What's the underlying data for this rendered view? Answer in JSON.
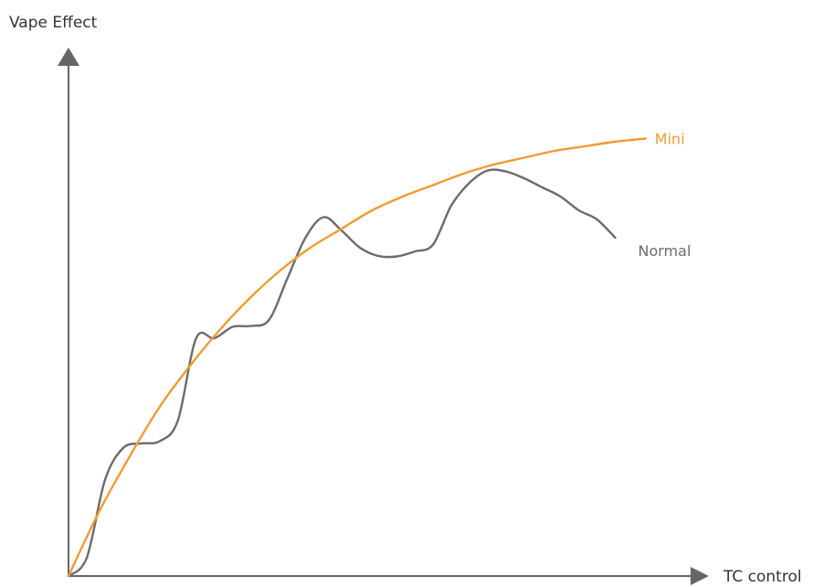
{
  "chart_data": {
    "type": "line",
    "title": "",
    "xlabel": "TC control",
    "ylabel": "Vape Effect",
    "xlim": [
      0,
      10
    ],
    "ylim": [
      0,
      10
    ],
    "grid": false,
    "series": [
      {
        "name": "Mini",
        "color": "#f39a32",
        "label_position": "end",
        "x": [
          0,
          0.5,
          1,
          1.5,
          2,
          2.5,
          3,
          3.5,
          4,
          4.5,
          5,
          5.5,
          6,
          6.5,
          7,
          7.5,
          8,
          8.5,
          9,
          9.5
        ],
        "y": [
          0,
          1.4,
          2.6,
          3.7,
          4.6,
          5.4,
          6.1,
          6.7,
          7.2,
          7.6,
          8.0,
          8.3,
          8.55,
          8.8,
          9.0,
          9.15,
          9.3,
          9.4,
          9.5,
          9.57
        ]
      },
      {
        "name": "Normal",
        "color": "#6b6b6b",
        "label_position": "end",
        "x": [
          0,
          0.3,
          0.6,
          0.9,
          1.2,
          1.5,
          1.8,
          2.1,
          2.4,
          2.7,
          3.0,
          3.3,
          3.6,
          3.9,
          4.2,
          4.5,
          4.8,
          5.1,
          5.4,
          5.7,
          6.0,
          6.3,
          6.6,
          6.9,
          7.2,
          7.5,
          7.8,
          8.1,
          8.4,
          8.7,
          9.0
        ],
        "y": [
          0,
          0.4,
          2.1,
          2.8,
          2.9,
          2.95,
          3.4,
          5.2,
          5.2,
          5.45,
          5.47,
          5.6,
          6.5,
          7.4,
          7.85,
          7.55,
          7.18,
          7.0,
          6.99,
          7.1,
          7.25,
          8.1,
          8.6,
          8.87,
          8.85,
          8.7,
          8.5,
          8.3,
          8.0,
          7.8,
          7.4
        ]
      }
    ]
  }
}
